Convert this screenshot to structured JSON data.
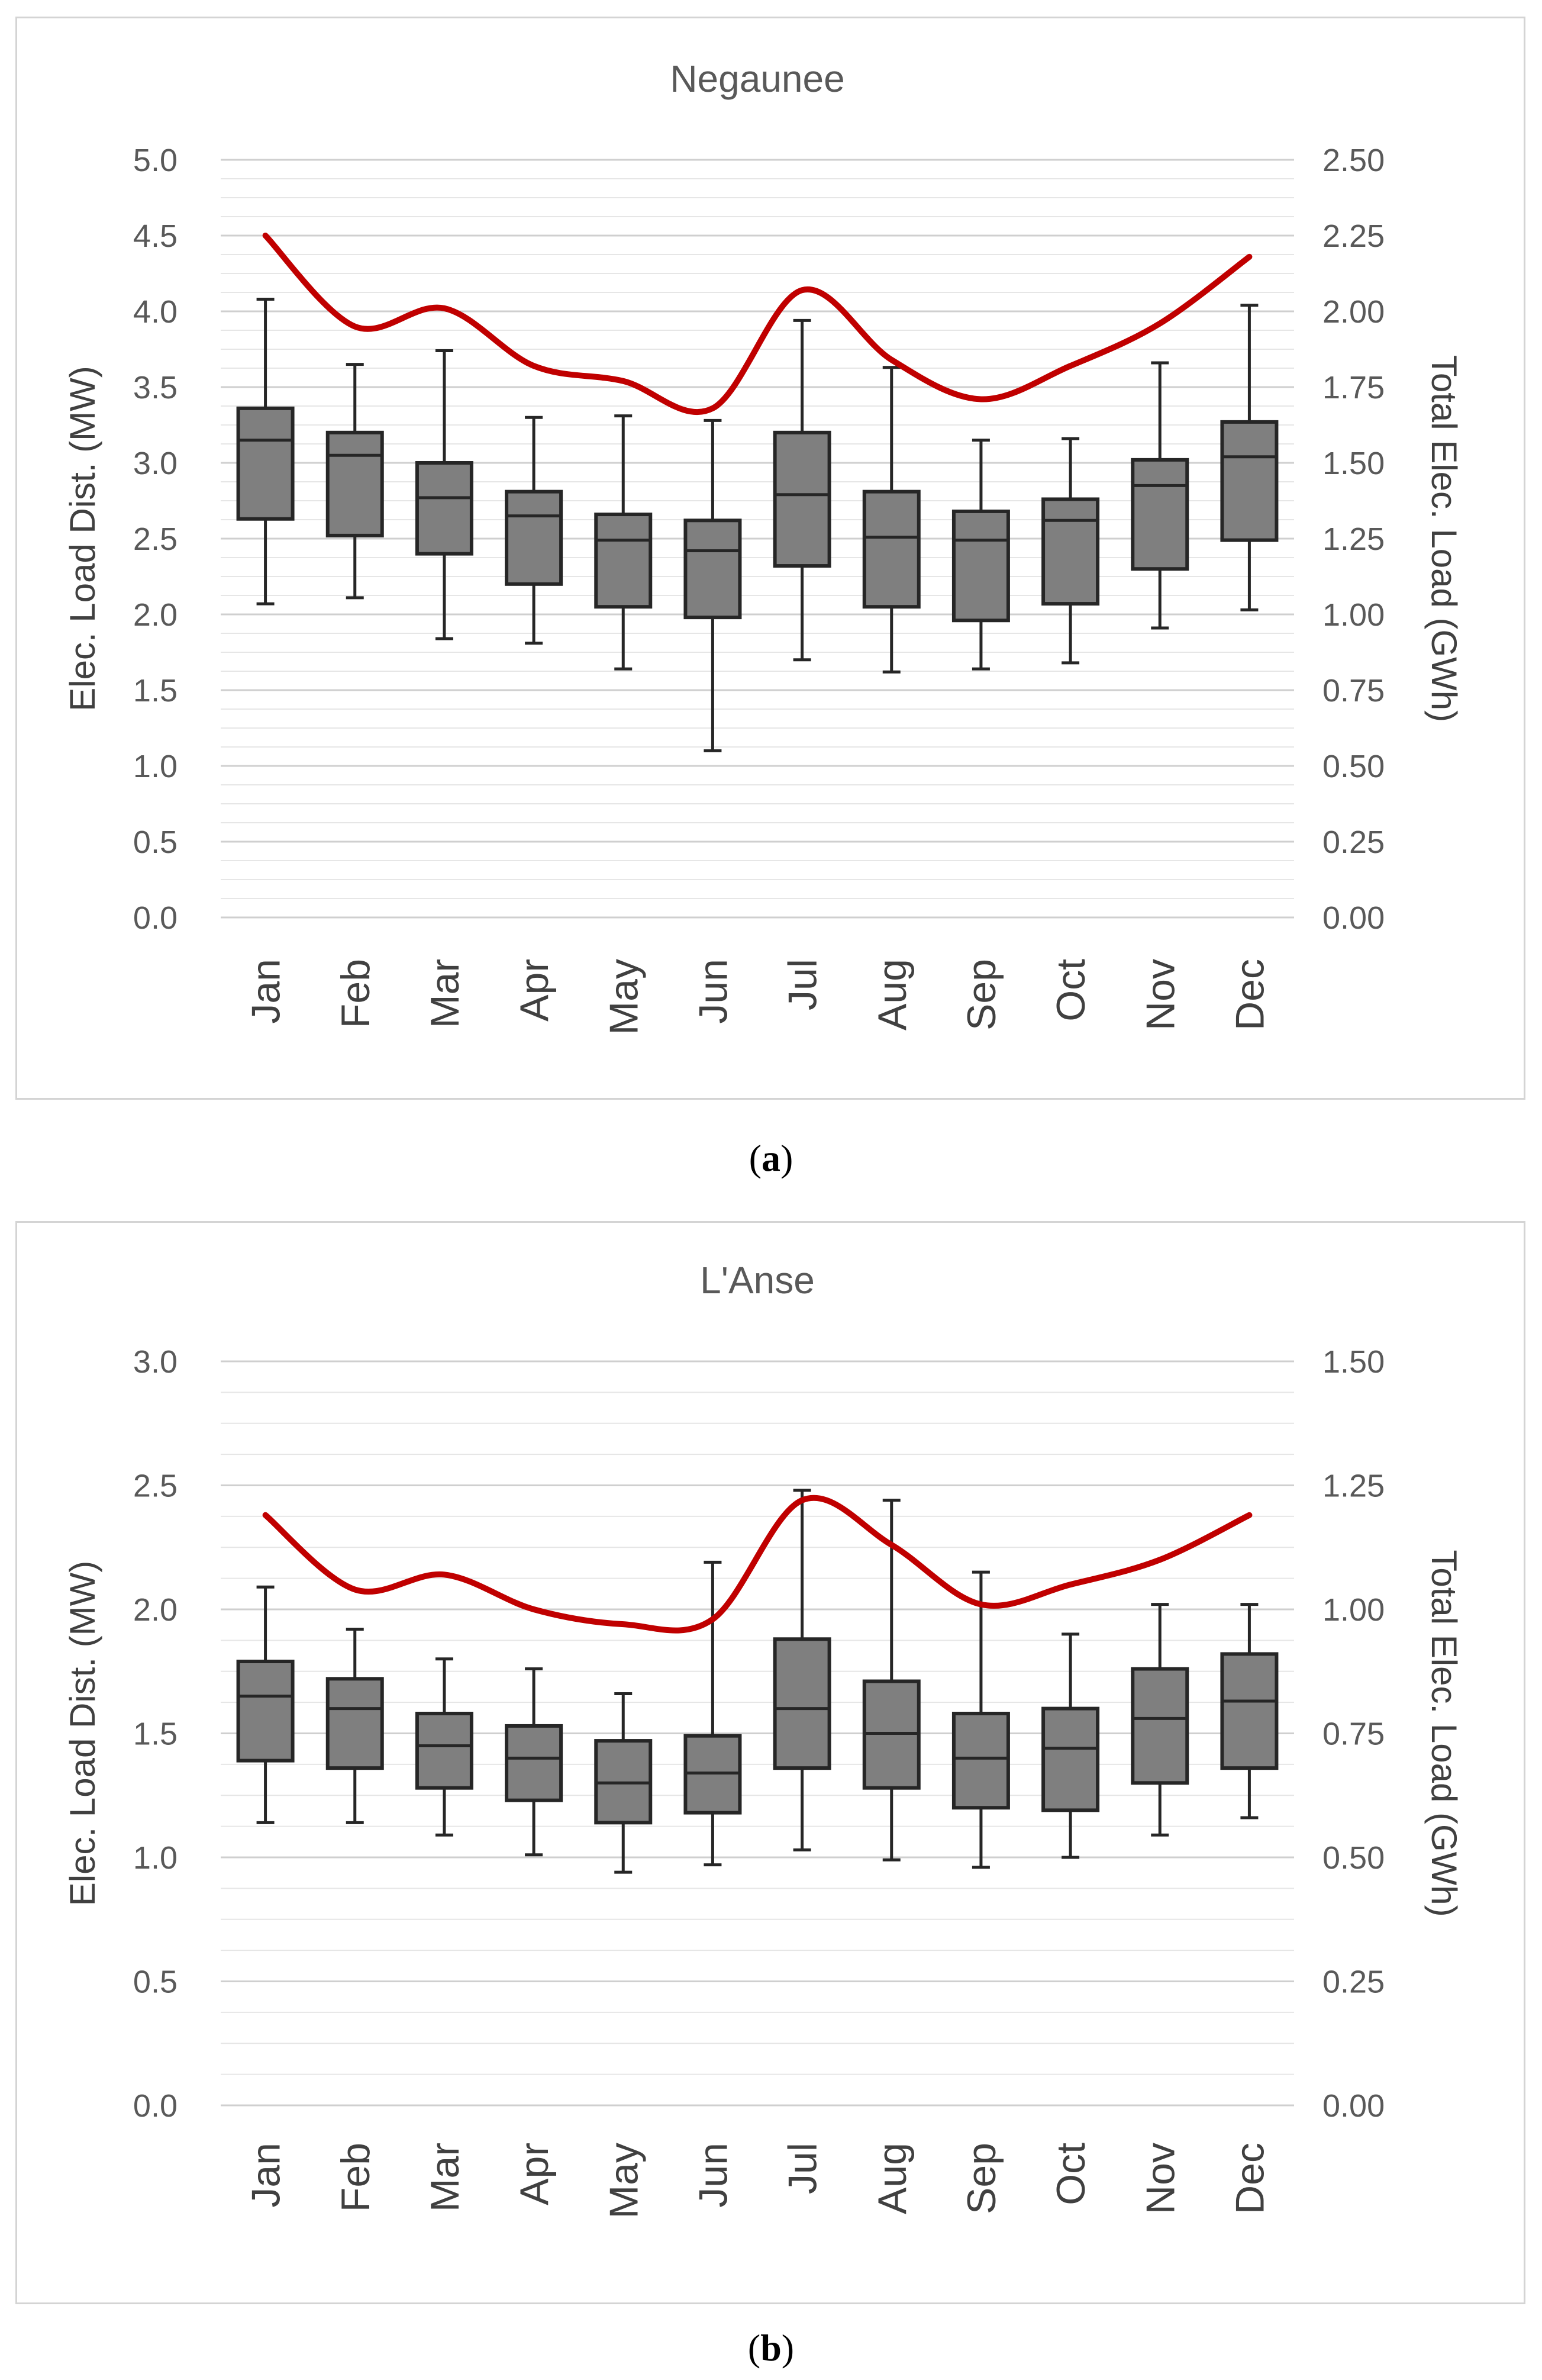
{
  "colors": {
    "box_fill": "#7f7f7f",
    "box_stroke": "#262626",
    "line": "#c00000",
    "grid": "#d9d9d9",
    "text": "#595959"
  },
  "chart_data": [
    {
      "type": "box",
      "title": "Negaunee",
      "caption_letter": "a",
      "ylabel_left": "Elec.  Load Dist. (MW)",
      "ylabel_right": "Total Elec. Load (GWh)",
      "categories": [
        "Jan",
        "Feb",
        "Mar",
        "Apr",
        "May",
        "Jun",
        "Jul",
        "Aug",
        "Sep",
        "Oct",
        "Nov",
        "Dec"
      ],
      "ylim_left": [
        0,
        5
      ],
      "ylim_right": [
        0,
        2.5
      ],
      "yticks_left": [
        "0.0",
        "0.5",
        "1.0",
        "1.5",
        "2.0",
        "2.5",
        "3.0",
        "3.5",
        "4.0",
        "4.5",
        "5.0"
      ],
      "yticks_right": [
        "0.00",
        "0.25",
        "0.50",
        "0.75",
        "1.00",
        "1.25",
        "1.50",
        "1.75",
        "2.00",
        "2.25",
        "2.50"
      ],
      "boxes": [
        {
          "min": 2.07,
          "q1": 2.63,
          "median": 3.15,
          "q3": 3.36,
          "max": 4.08
        },
        {
          "min": 2.11,
          "q1": 2.52,
          "median": 3.05,
          "q3": 3.2,
          "max": 3.65
        },
        {
          "min": 1.84,
          "q1": 2.4,
          "median": 2.77,
          "q3": 3.0,
          "max": 3.74
        },
        {
          "min": 1.81,
          "q1": 2.2,
          "median": 2.65,
          "q3": 2.81,
          "max": 3.3
        },
        {
          "min": 1.64,
          "q1": 2.05,
          "median": 2.49,
          "q3": 2.66,
          "max": 3.31
        },
        {
          "min": 1.1,
          "q1": 1.98,
          "median": 2.42,
          "q3": 2.62,
          "max": 3.28
        },
        {
          "min": 1.7,
          "q1": 2.32,
          "median": 2.79,
          "q3": 3.2,
          "max": 3.94
        },
        {
          "min": 1.62,
          "q1": 2.05,
          "median": 2.51,
          "q3": 2.81,
          "max": 3.63
        },
        {
          "min": 1.64,
          "q1": 1.96,
          "median": 2.49,
          "q3": 2.68,
          "max": 3.15
        },
        {
          "min": 1.68,
          "q1": 2.07,
          "median": 2.62,
          "q3": 2.76,
          "max": 3.16
        },
        {
          "min": 1.91,
          "q1": 2.3,
          "median": 2.85,
          "q3": 3.02,
          "max": 3.66
        },
        {
          "min": 2.03,
          "q1": 2.49,
          "median": 3.04,
          "q3": 3.27,
          "max": 4.04
        }
      ],
      "series": [
        {
          "name": "Total Elec. Load (GWh)",
          "axis": "right",
          "values": [
            2.25,
            1.95,
            2.01,
            1.82,
            1.77,
            1.68,
            2.07,
            1.84,
            1.71,
            1.82,
            1.96,
            2.18
          ]
        }
      ]
    },
    {
      "type": "box",
      "title": "L'Anse",
      "caption_letter": "b",
      "ylabel_left": "Elec.  Load Dist. (MW)",
      "ylabel_right": "Total Elec. Load (GWh)",
      "categories": [
        "Jan",
        "Feb",
        "Mar",
        "Apr",
        "May",
        "Jun",
        "Jul",
        "Aug",
        "Sep",
        "Oct",
        "Nov",
        "Dec"
      ],
      "ylim_left": [
        0,
        3
      ],
      "ylim_right": [
        0,
        1.5
      ],
      "yticks_left": [
        "0.0",
        "0.5",
        "1.0",
        "1.5",
        "2.0",
        "2.5",
        "3.0"
      ],
      "yticks_right": [
        "0.00",
        "0.25",
        "0.50",
        "0.75",
        "1.00",
        "1.25",
        "1.50"
      ],
      "boxes": [
        {
          "min": 1.14,
          "q1": 1.39,
          "median": 1.65,
          "q3": 1.79,
          "max": 2.09
        },
        {
          "min": 1.14,
          "q1": 1.36,
          "median": 1.6,
          "q3": 1.72,
          "max": 1.92
        },
        {
          "min": 1.09,
          "q1": 1.28,
          "median": 1.45,
          "q3": 1.58,
          "max": 1.8
        },
        {
          "min": 1.01,
          "q1": 1.23,
          "median": 1.4,
          "q3": 1.53,
          "max": 1.76
        },
        {
          "min": 0.94,
          "q1": 1.14,
          "median": 1.3,
          "q3": 1.47,
          "max": 1.66
        },
        {
          "min": 0.97,
          "q1": 1.18,
          "median": 1.34,
          "q3": 1.49,
          "max": 2.19
        },
        {
          "min": 1.03,
          "q1": 1.36,
          "median": 1.6,
          "q3": 1.88,
          "max": 2.48
        },
        {
          "min": 0.99,
          "q1": 1.28,
          "median": 1.5,
          "q3": 1.71,
          "max": 2.44
        },
        {
          "min": 0.96,
          "q1": 1.2,
          "median": 1.4,
          "q3": 1.58,
          "max": 2.15
        },
        {
          "min": 1.0,
          "q1": 1.19,
          "median": 1.44,
          "q3": 1.6,
          "max": 1.9
        },
        {
          "min": 1.09,
          "q1": 1.3,
          "median": 1.56,
          "q3": 1.76,
          "max": 2.02
        },
        {
          "min": 1.16,
          "q1": 1.36,
          "median": 1.63,
          "q3": 1.82,
          "max": 2.02
        }
      ],
      "series": [
        {
          "name": "Total Elec. Load (GWh)",
          "axis": "right",
          "values": [
            1.19,
            1.04,
            1.07,
            1.0,
            0.97,
            0.98,
            1.22,
            1.13,
            1.01,
            1.05,
            1.1,
            1.19
          ]
        }
      ]
    }
  ]
}
